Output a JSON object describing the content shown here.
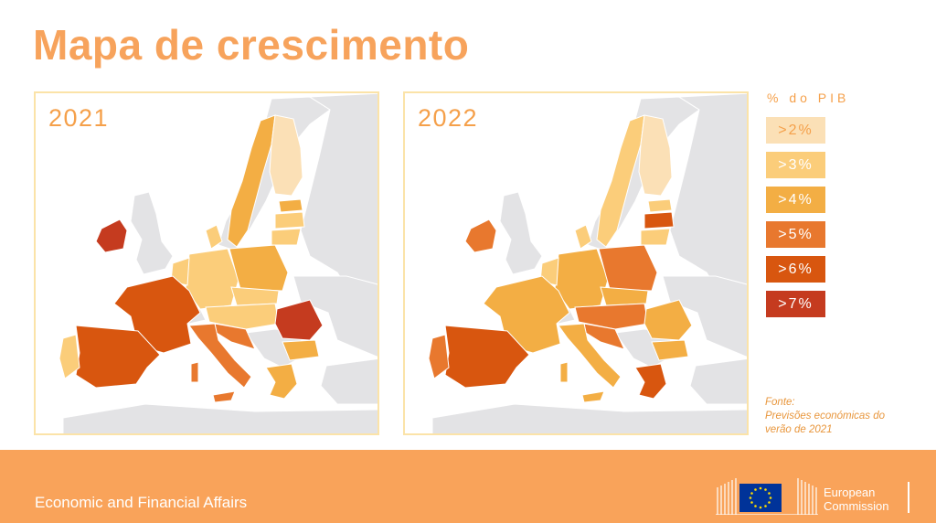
{
  "title": "Mapa de crescimento",
  "maps": [
    {
      "year": "2021"
    },
    {
      "year": "2022"
    }
  ],
  "legend": {
    "title": "% do PIB",
    "items": [
      {
        "label": ">2%",
        "color": "#fbe0b6",
        "text_color": "#f5a04a"
      },
      {
        "label": ">3%",
        "color": "#fbcd7a",
        "text_color": "#ffffff"
      },
      {
        "label": ">4%",
        "color": "#f3ae44",
        "text_color": "#ffffff"
      },
      {
        "label": ">5%",
        "color": "#e8782e",
        "text_color": "#ffffff"
      },
      {
        "label": ">6%",
        "color": "#d8560f",
        "text_color": "#ffffff"
      },
      {
        "label": ">7%",
        "color": "#c53b1f",
        "text_color": "#ffffff"
      }
    ]
  },
  "source": {
    "label": "Fonte:",
    "line1": "Previsões económicas do",
    "line2": "verão de 2021"
  },
  "footer": {
    "left_text": "Economic and Financial Affairs",
    "brand_line1": "European",
    "brand_line2": "Commission"
  },
  "colors": {
    "accent": "#f7a35c",
    "footer_bg": "#f9a35a",
    "non_eu": "#e3e3e5",
    "panel_border": "#fbe3a8"
  }
}
